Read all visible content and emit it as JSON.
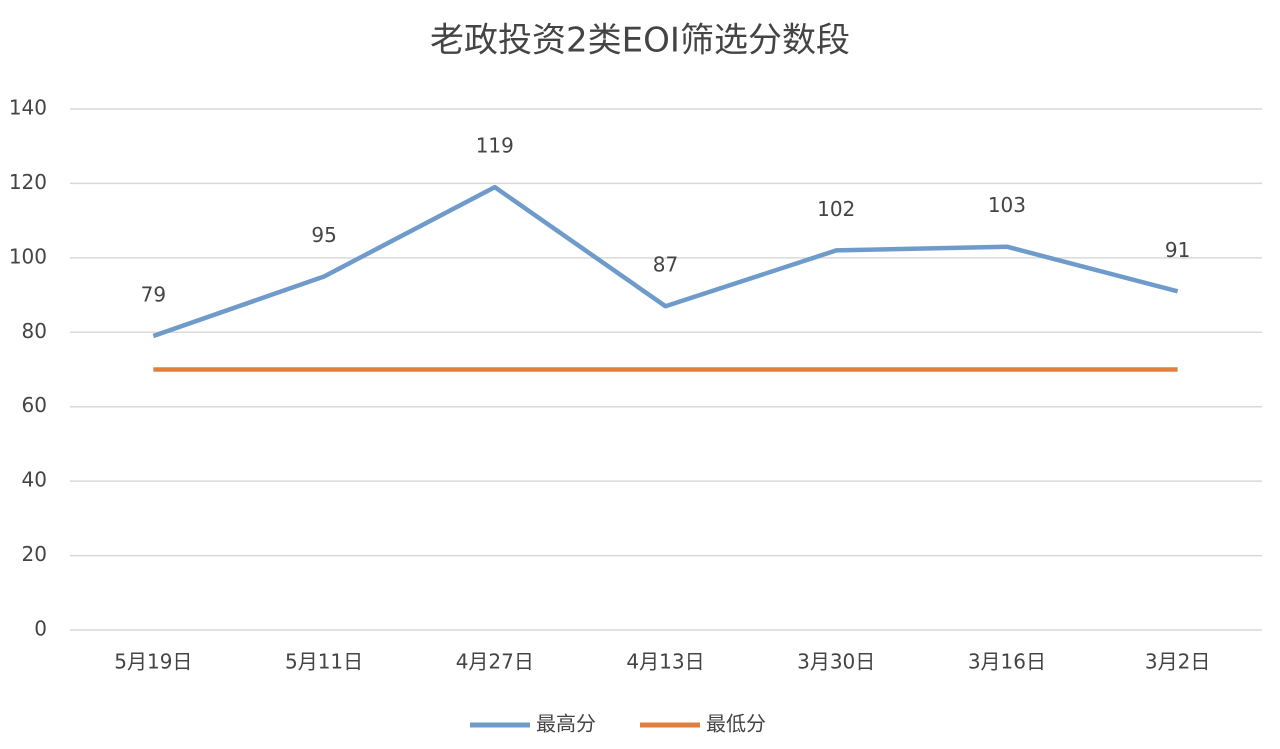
{
  "chart_data": {
    "type": "line",
    "title": "老政投资2类EOI筛选分数段",
    "categories": [
      "5月19日",
      "5月11日",
      "4月27日",
      "4月13日",
      "3月30日",
      "3月16日",
      "3月2日"
    ],
    "series": [
      {
        "name": "最高分",
        "color": "#6f9bcb",
        "values": [
          79,
          95,
          119,
          87,
          102,
          103,
          91
        ],
        "data_labels": true
      },
      {
        "name": "最低分",
        "color": "#e07f3e",
        "values": [
          70,
          70,
          70,
          70,
          70,
          70,
          70
        ],
        "data_labels": false
      }
    ],
    "ylim": [
      0,
      140
    ],
    "yticks": [
      0,
      20,
      40,
      60,
      80,
      100,
      120,
      140
    ],
    "grid": true,
    "legend": "bottom"
  }
}
